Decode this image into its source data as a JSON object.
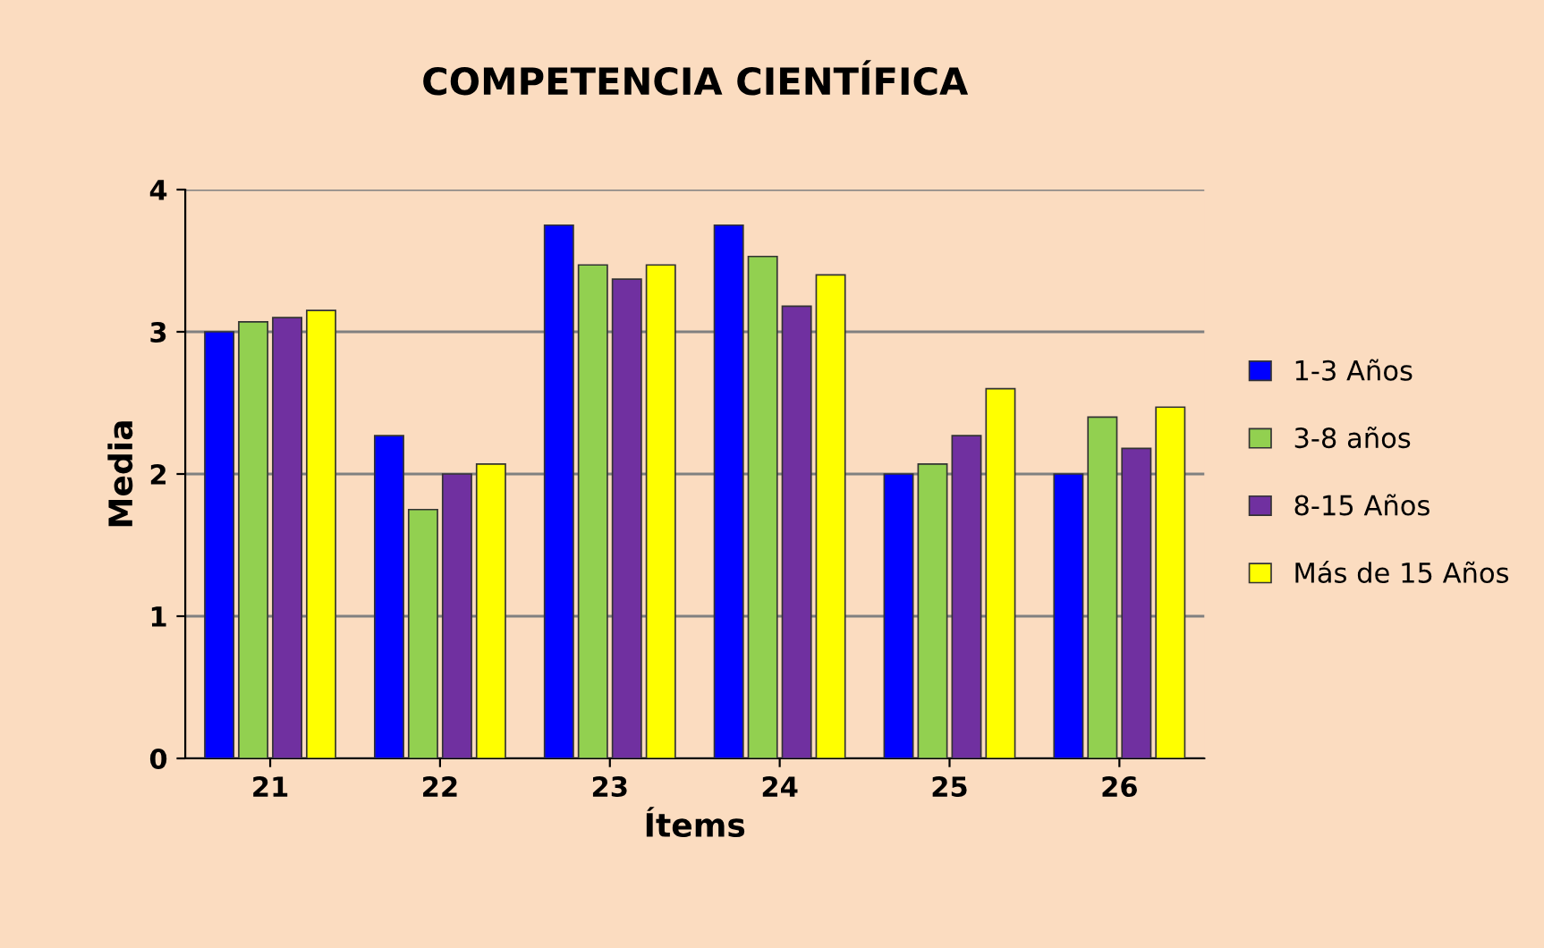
{
  "chart_data": {
    "type": "bar",
    "title": "COMPETENCIA CIENTÍFICA",
    "xlabel": "Ítems",
    "ylabel": "Media",
    "categories": [
      "21",
      "22",
      "23",
      "24",
      "25",
      "26"
    ],
    "series": [
      {
        "name": "1-3 Años",
        "color": "#0000ff",
        "values": [
          3.0,
          2.27,
          3.75,
          3.75,
          2.0,
          2.0
        ]
      },
      {
        "name": "3-8 años",
        "color": "#92d050",
        "values": [
          3.07,
          1.75,
          3.47,
          3.53,
          2.07,
          2.4
        ]
      },
      {
        "name": "8-15 Años",
        "color": "#7030a0",
        "values": [
          3.1,
          2.0,
          3.37,
          3.18,
          2.27,
          2.18
        ]
      },
      {
        "name": "Más de 15 Años",
        "color": "#ffff00",
        "values": [
          3.15,
          2.07,
          3.47,
          3.4,
          2.6,
          2.47
        ]
      }
    ],
    "ylim": [
      0,
      4
    ],
    "yticks": [
      0,
      1,
      2,
      3,
      4
    ],
    "grid": "y",
    "legend": "right"
  }
}
